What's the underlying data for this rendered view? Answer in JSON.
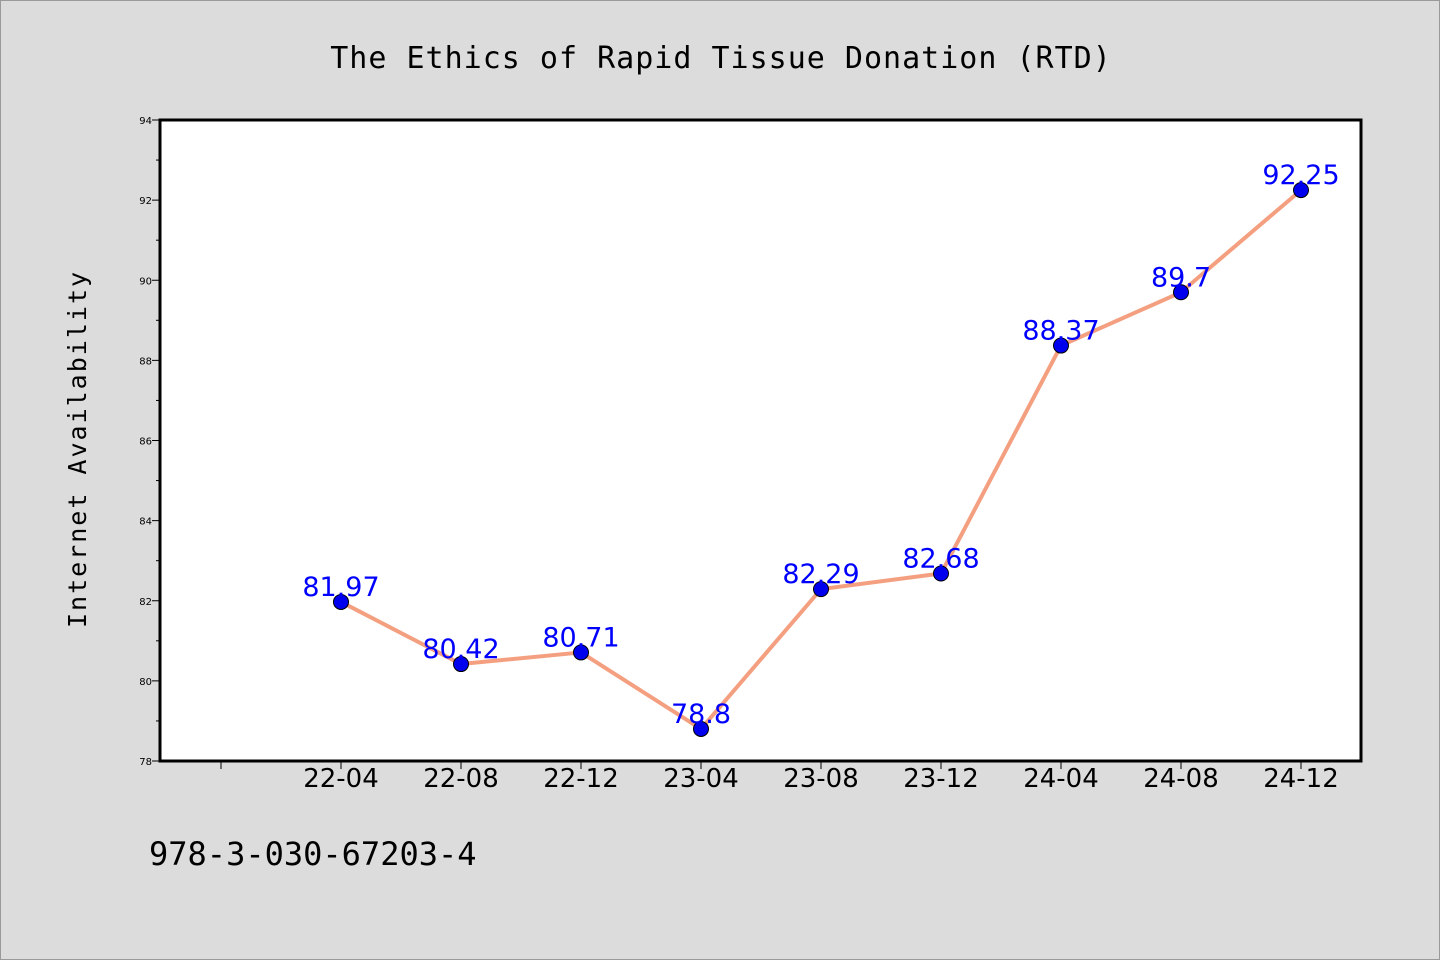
{
  "footer": {
    "isbn": "978-3-030-67203-4"
  },
  "chart_data": {
    "type": "line",
    "title": "The Ethics of Rapid Tissue Donation (RTD)",
    "xlabel": "",
    "ylabel": "Internet Availability",
    "categories": [
      "22-04",
      "22-08",
      "22-12",
      "23-04",
      "23-08",
      "23-12",
      "24-04",
      "24-08",
      "24-12"
    ],
    "series": [
      {
        "values": [
          81.97,
          80.42,
          80.71,
          78.8,
          82.29,
          82.68,
          88.37,
          89.7,
          92.25
        ],
        "data_labels": [
          "81.97",
          "80.42",
          "80.71",
          "78.8",
          "82.29",
          "82.68",
          "88.37",
          "89.7",
          "92.25"
        ],
        "line_color": "#f4a080",
        "marker_color": "#0000ee",
        "label_color": "#0000ff"
      }
    ],
    "ylim": [
      78,
      94
    ],
    "y_ticks": [
      "78",
      "80",
      "82",
      "84",
      "86",
      "88",
      "90",
      "92",
      "94"
    ],
    "grid": false,
    "legend": "none",
    "background_color": "#dcdcdc",
    "plot_background_color": "#ffffff"
  }
}
